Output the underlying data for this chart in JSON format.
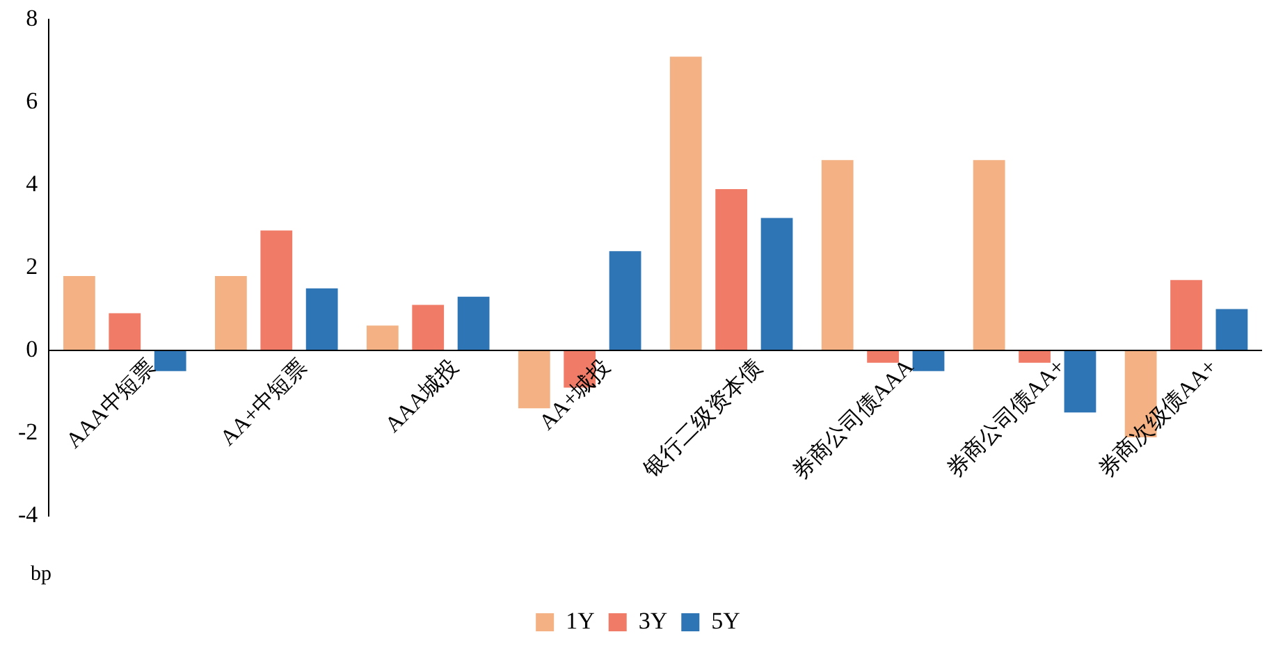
{
  "chart_data": {
    "type": "bar",
    "ylabel": "bp",
    "categories": [
      "AAA中短票",
      "AA+中短票",
      "AAA城投",
      "AA+城投",
      "银行二级资本债",
      "券商公司债AAA",
      "券商公司债AA+",
      "券商次级债AA+"
    ],
    "series": [
      {
        "name": "1Y",
        "color": "#f4b183",
        "values": [
          1.8,
          1.8,
          0.6,
          -1.4,
          7.1,
          4.6,
          4.6,
          -2.1
        ]
      },
      {
        "name": "3Y",
        "color": "#f07c68",
        "values": [
          0.9,
          2.9,
          1.1,
          -0.9,
          3.9,
          -0.3,
          -0.3,
          1.7
        ]
      },
      {
        "name": "5Y",
        "color": "#2e75b6",
        "values": [
          -0.5,
          1.5,
          1.3,
          2.4,
          3.2,
          -0.5,
          -1.5,
          1.0
        ]
      }
    ],
    "ylim": [
      -4,
      8
    ],
    "yticks": [
      -4,
      -2,
      0,
      2,
      4,
      6,
      8
    ],
    "grid": false,
    "legend": "bottom"
  }
}
